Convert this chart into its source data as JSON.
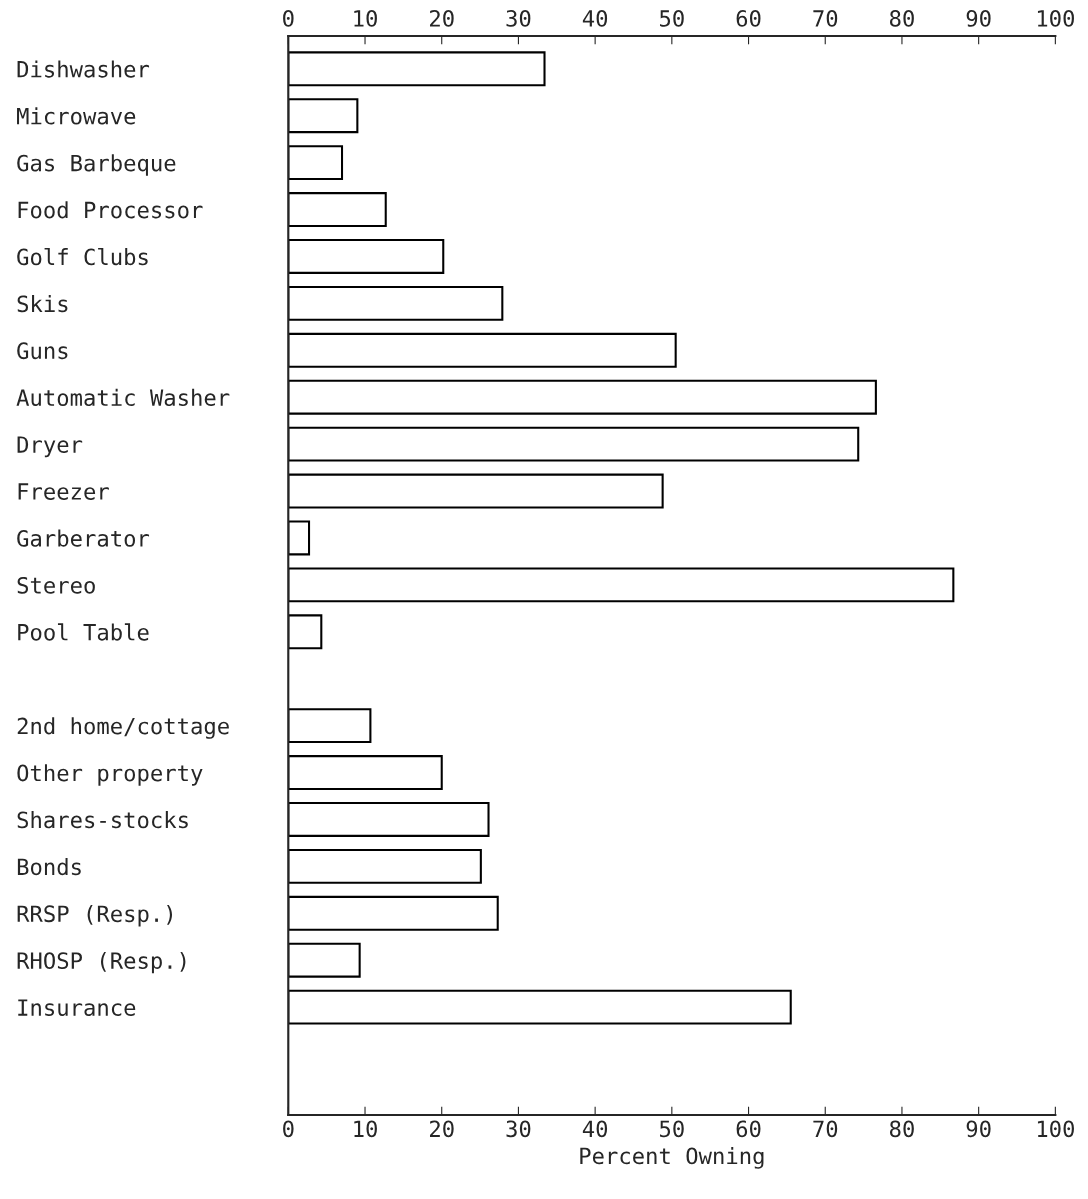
{
  "chart_data": {
    "type": "bar",
    "orientation": "horizontal",
    "xlabel": "Percent Owning",
    "categories": [
      "Dishwasher",
      "Microwave",
      "Gas Barbeque",
      "Food Processor",
      "Golf Clubs",
      "Skis",
      "Guns",
      "Automatic Washer",
      "Dryer",
      "Freezer",
      "Garberator",
      "Stereo",
      "Pool Table",
      null,
      "2nd home/cottage",
      "Other property",
      "Shares-stocks",
      "Bonds",
      "RRSP (Resp.)",
      "RHOSP (Resp.)",
      "Insurance"
    ],
    "values": [
      33.4,
      9,
      7,
      12.7,
      20.2,
      27.9,
      50.5,
      76.6,
      74.3,
      48.8,
      2.7,
      86.7,
      4.3,
      null,
      10.7,
      20,
      26.1,
      25.1,
      27.3,
      9.3,
      65.5
    ],
    "color": "#ffffff",
    "xlim": [
      0,
      100
    ],
    "xticks": [
      0,
      10,
      20,
      30,
      40,
      50,
      60,
      70,
      80,
      90,
      100
    ],
    "x2lim": [
      0,
      100
    ],
    "x2ticks": [
      0,
      10,
      20,
      30,
      40,
      50,
      60,
      70,
      80,
      90,
      100
    ],
    "grid": false,
    "legend": false
  }
}
